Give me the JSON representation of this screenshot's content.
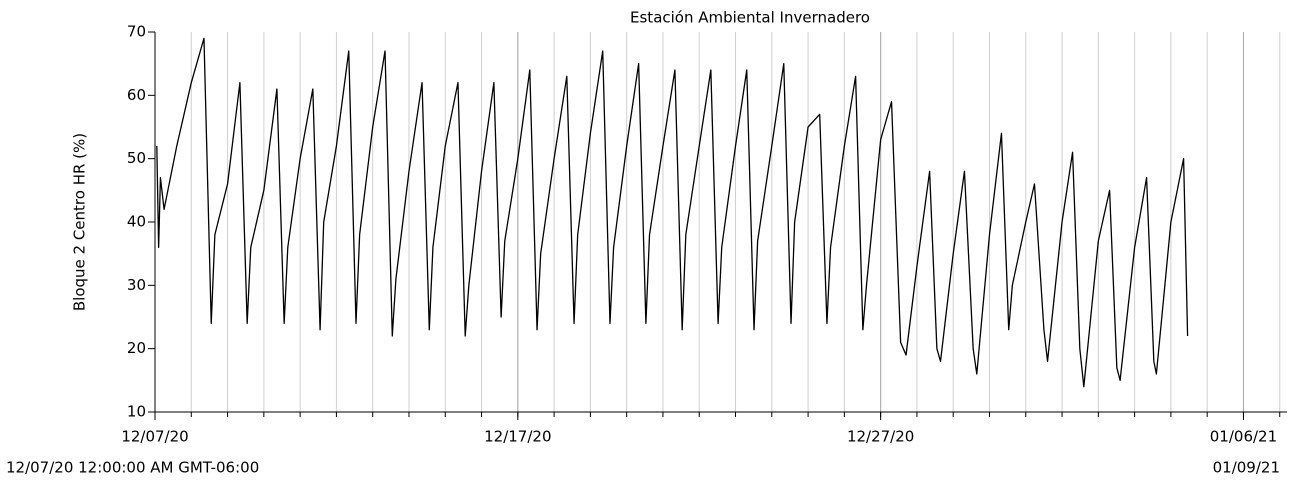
{
  "chart_data": {
    "type": "line",
    "title": "Estación Ambiental Invernadero",
    "y_label": "Bloque 2 Centro HR (%)",
    "range_start_label": "12/07/20 12:00:00 AM GMT-06:00",
    "range_end_label": "01/09/21",
    "color": "#000000",
    "x": [
      0.05,
      0.1,
      0.15,
      0.25,
      0.6,
      1.0,
      1.35,
      1.55,
      1.65,
      2.0,
      2.34,
      2.54,
      2.64,
      3.0,
      3.36,
      3.56,
      3.66,
      4.0,
      4.35,
      4.55,
      4.65,
      5.0,
      5.34,
      5.54,
      5.64,
      6.0,
      6.34,
      6.54,
      6.64,
      7.0,
      7.36,
      7.56,
      7.66,
      8.0,
      8.35,
      8.55,
      8.65,
      9.0,
      9.34,
      9.54,
      9.64,
      10.0,
      10.33,
      10.53,
      10.63,
      11.0,
      11.35,
      11.55,
      11.65,
      12.0,
      12.34,
      12.54,
      12.64,
      13.0,
      13.33,
      13.53,
      13.63,
      14.0,
      14.33,
      14.53,
      14.63,
      15.0,
      15.32,
      15.52,
      15.62,
      16.0,
      16.31,
      16.51,
      16.61,
      17.0,
      17.33,
      17.53,
      17.63,
      18.0,
      18.32,
      18.52,
      18.62,
      19.0,
      19.31,
      19.51,
      19.61,
      20.0,
      20.3,
      20.55,
      20.7,
      21.0,
      21.35,
      21.55,
      21.65,
      22.0,
      22.31,
      22.55,
      22.65,
      23.0,
      23.33,
      23.53,
      23.63,
      24.0,
      24.24,
      24.5,
      24.6,
      25.0,
      25.29,
      25.49,
      25.6,
      26.0,
      26.31,
      26.51,
      26.6,
      27.0,
      27.33,
      27.53,
      27.6,
      28.0,
      28.35,
      28.46
    ],
    "values": [
      52,
      36,
      47,
      42,
      52,
      62,
      69,
      24,
      38,
      46,
      62,
      24,
      36,
      45,
      61,
      24,
      36,
      50,
      61,
      23,
      40,
      52,
      67,
      24,
      38,
      55,
      67,
      22,
      31,
      48,
      62,
      23,
      36,
      52,
      62,
      22,
      30,
      48,
      62,
      25,
      37,
      50,
      64,
      23,
      35,
      50,
      63,
      24,
      38,
      54,
      67,
      24,
      36,
      52,
      65,
      24,
      38,
      52,
      64,
      23,
      38,
      52,
      64,
      24,
      36,
      52,
      64,
      23,
      37,
      52,
      65,
      24,
      40,
      55,
      57,
      24,
      36,
      52,
      63,
      23,
      30,
      53,
      59,
      21,
      19,
      33,
      48,
      20,
      18,
      35,
      48,
      20,
      16,
      38,
      54,
      23,
      30,
      40,
      46,
      23,
      18,
      40,
      51,
      20,
      14,
      37,
      45,
      17,
      15,
      36,
      47,
      18,
      16,
      40,
      50,
      22
    ],
    "xlim": [
      0,
      31.2
    ],
    "xticks": [
      {
        "value": 0,
        "label": "12/07/20"
      },
      {
        "value": 10,
        "label": "12/17/20"
      },
      {
        "value": 20,
        "label": "12/27/20"
      },
      {
        "value": 30,
        "label": "01/06/21"
      }
    ],
    "xminor_ticks": [
      1,
      2,
      3,
      4,
      5,
      6,
      7,
      8,
      9,
      10,
      11,
      12,
      13,
      14,
      15,
      16,
      17,
      18,
      19,
      20,
      21,
      22,
      23,
      24,
      25,
      26,
      27,
      28,
      29,
      30,
      31
    ],
    "ylim": [
      10,
      70
    ],
    "yticks": [
      10,
      20,
      30,
      40,
      50,
      60,
      70
    ],
    "grid": true
  }
}
